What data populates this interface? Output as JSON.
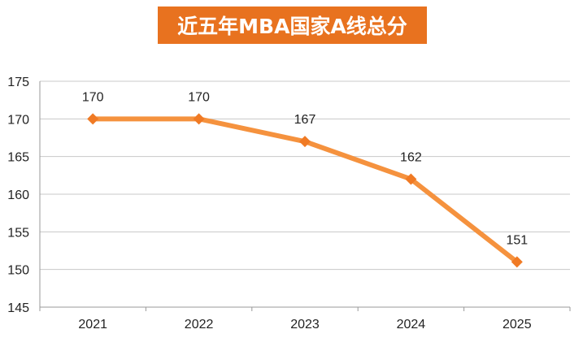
{
  "title": "近五年MBA国家A线总分",
  "colors": {
    "title_bg": "#e8721f",
    "line": "#f5923e",
    "marker": "#f07a24",
    "grid": "#c8c8c8",
    "axis": "#999999"
  },
  "chart_data": {
    "type": "line",
    "categories": [
      "2021",
      "2022",
      "2023",
      "2024",
      "2025"
    ],
    "series": [
      {
        "values": [
          170,
          170,
          167,
          162,
          151
        ]
      }
    ],
    "data_labels": [
      "170",
      "170",
      "167",
      "162",
      "151"
    ],
    "ylim": [
      145,
      175
    ],
    "yticks": [
      175,
      170,
      165,
      160,
      155,
      150,
      145
    ],
    "grid": true,
    "legend": "none",
    "xlabel": "",
    "ylabel": ""
  }
}
